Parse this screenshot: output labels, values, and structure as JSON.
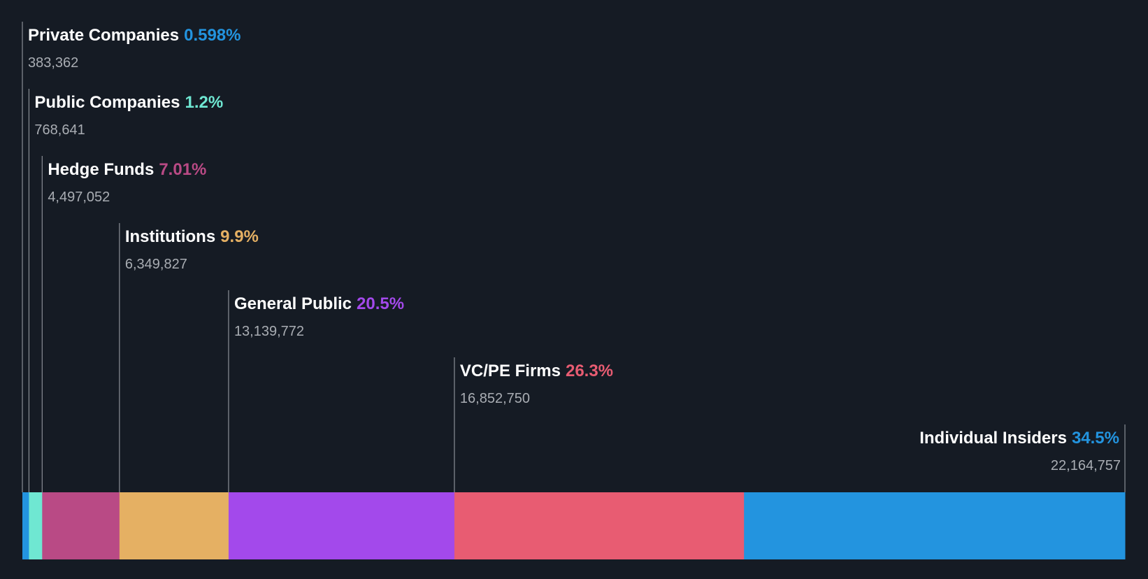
{
  "chart_data": {
    "type": "bar",
    "orientation": "horizontal-stacked",
    "title": "",
    "xlabel": "",
    "ylabel": "",
    "categories": [
      "Private Companies",
      "Public Companies",
      "Hedge Funds",
      "Institutions",
      "General Public",
      "VC/PE Firms",
      "Individual Insiders"
    ],
    "series": [
      {
        "category": "Private Companies",
        "percent_label": "0.598%",
        "percent": 0.598,
        "shares_label": "383,362",
        "shares": 383362,
        "color": "#2394df"
      },
      {
        "category": "Public Companies",
        "percent_label": "1.2%",
        "percent": 1.2,
        "shares_label": "768,641",
        "shares": 768641,
        "color": "#6fe7d2"
      },
      {
        "category": "Hedge Funds",
        "percent_label": "7.01%",
        "percent": 7.01,
        "shares_label": "4,497,052",
        "shares": 4497052,
        "color": "#b94a85"
      },
      {
        "category": "Institutions",
        "percent_label": "9.9%",
        "percent": 9.9,
        "shares_label": "6,349,827",
        "shares": 6349827,
        "color": "#e5b063"
      },
      {
        "category": "General Public",
        "percent_label": "20.5%",
        "percent": 20.5,
        "shares_label": "13,139,772",
        "shares": 13139772,
        "color": "#a349eb"
      },
      {
        "category": "VC/PE Firms",
        "percent_label": "26.3%",
        "percent": 26.3,
        "shares_label": "16,852,750",
        "shares": 16852750,
        "color": "#e85c72"
      },
      {
        "category": "Individual Insiders",
        "percent_label": "34.5%",
        "percent": 34.5,
        "shares_label": "22,164,757",
        "shares": 22164757,
        "color": "#2394df"
      }
    ],
    "legend": "none",
    "grid": false
  }
}
